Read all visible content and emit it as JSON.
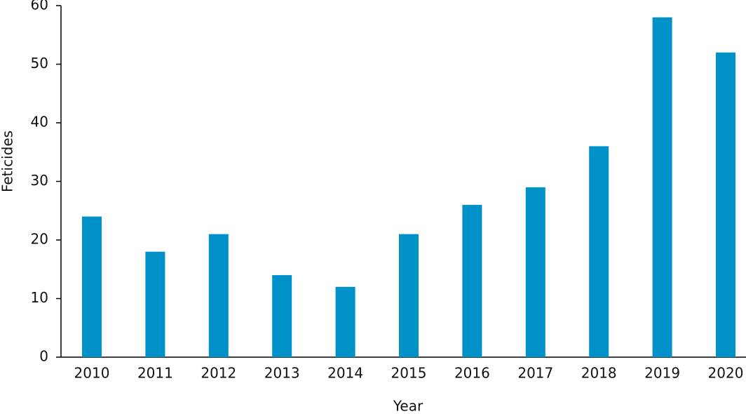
{
  "chart_data": {
    "type": "bar",
    "x_label": "Year",
    "y_label": "Feticides",
    "categories": [
      "2010",
      "2011",
      "2012",
      "2013",
      "2014",
      "2015",
      "2016",
      "2017",
      "2018",
      "2019",
      "2020"
    ],
    "values": [
      24,
      18,
      21,
      14,
      12,
      21,
      26,
      29,
      36,
      58,
      52
    ],
    "color": "#0091c9",
    "ylim": [
      0,
      60
    ],
    "yticks": [
      0,
      10,
      20,
      30,
      40,
      50,
      60
    ],
    "grid": false
  }
}
